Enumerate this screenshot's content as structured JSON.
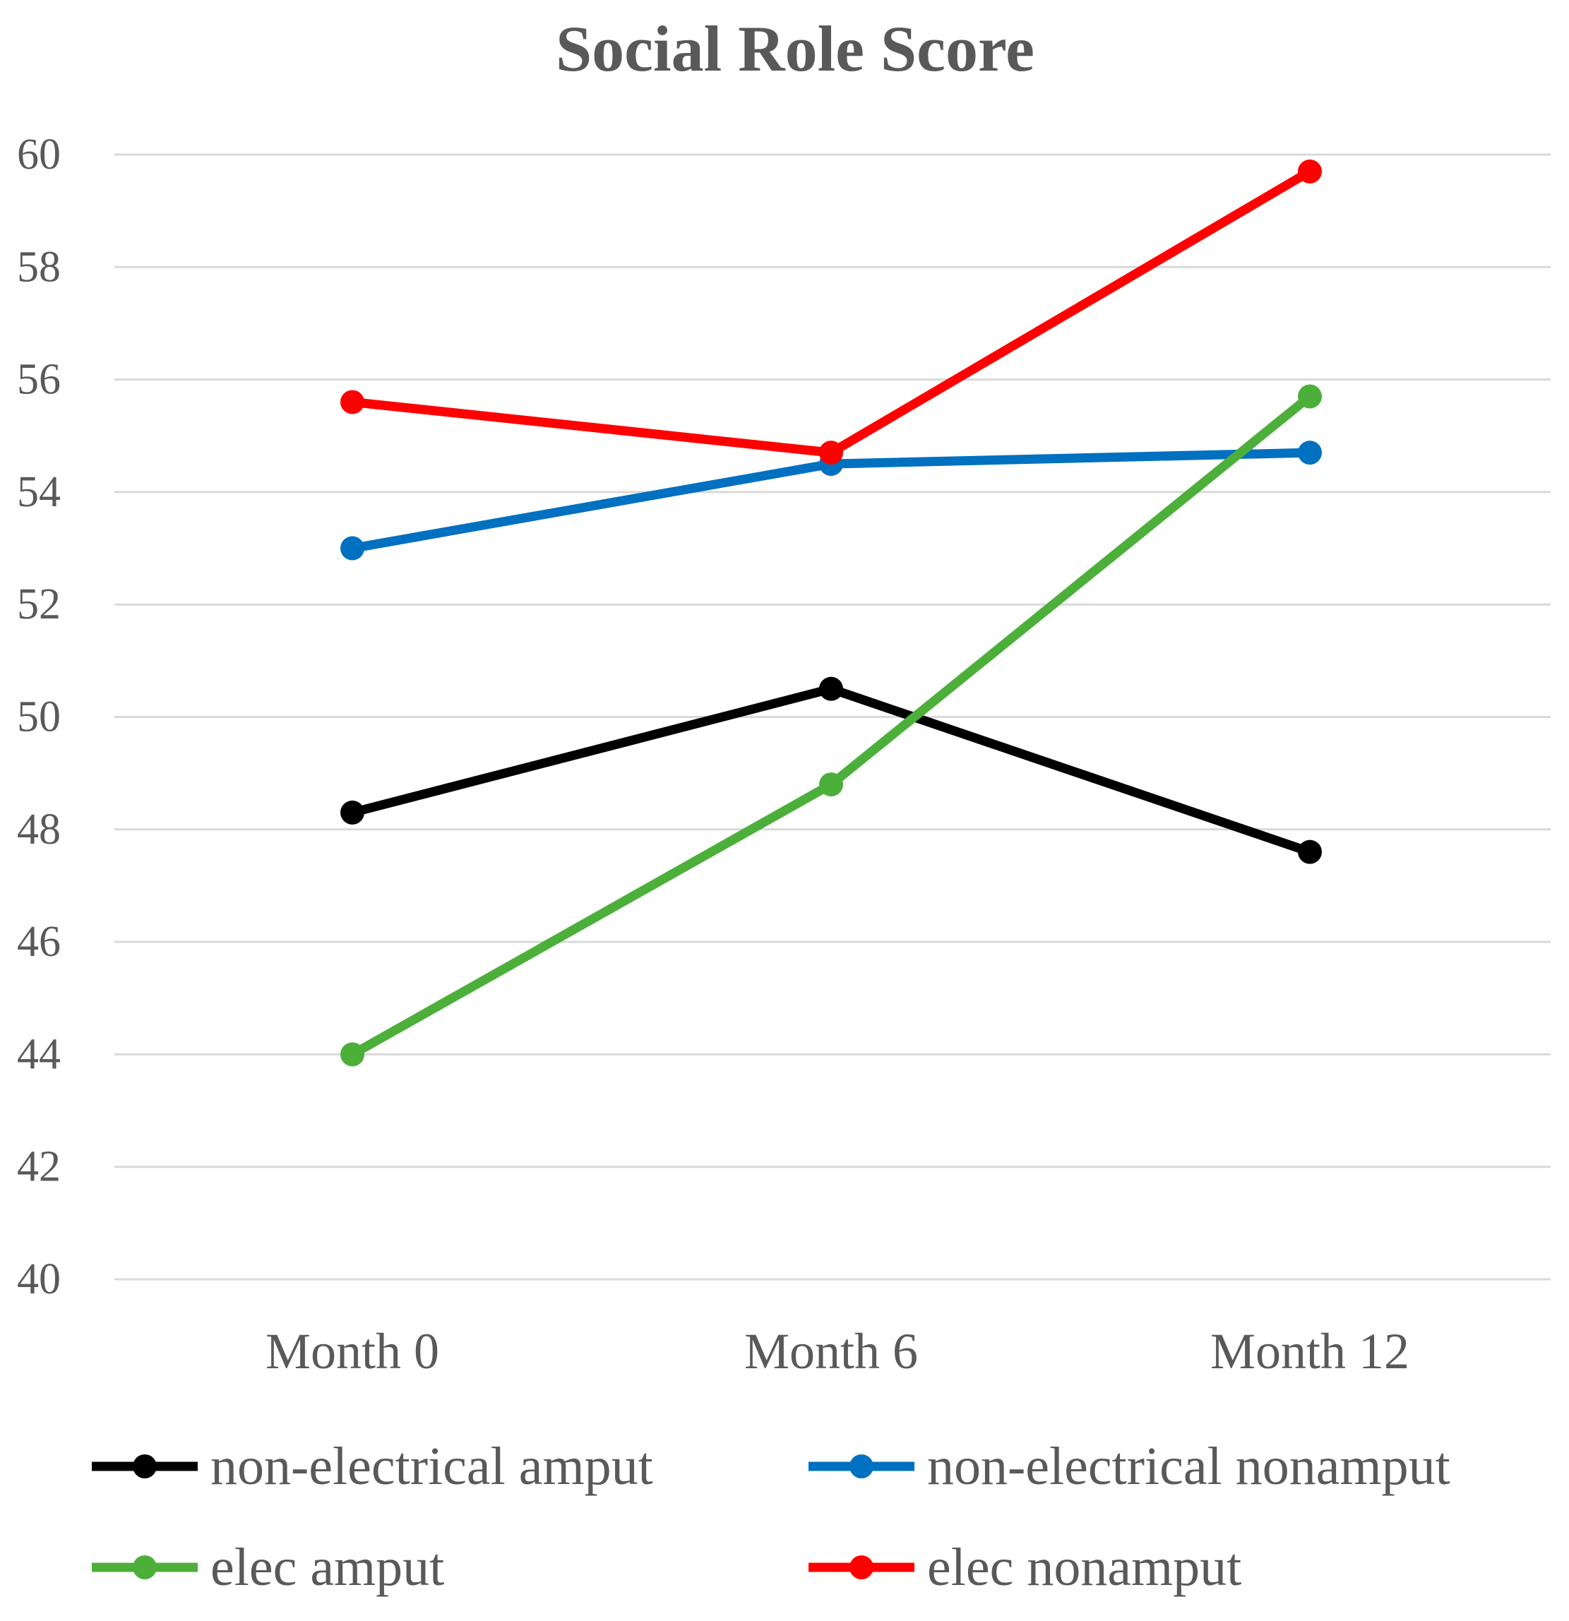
{
  "chart_data": {
    "type": "line",
    "title": "Social Role Score",
    "xlabel": "",
    "ylabel": "",
    "categories": [
      "Month 0",
      "Month 6",
      "Month 12"
    ],
    "ylim": [
      40,
      60
    ],
    "yticks": [
      40,
      42,
      44,
      46,
      48,
      50,
      52,
      54,
      56,
      58,
      60
    ],
    "grid": true,
    "legend_position": "bottom",
    "series": [
      {
        "name": "non-electrical amput",
        "color": "#000000",
        "values": [
          48.3,
          50.5,
          47.6
        ]
      },
      {
        "name": "non-electrical nonamput",
        "color": "#0070C0",
        "values": [
          53.0,
          54.5,
          54.7
        ]
      },
      {
        "name": "elec amput",
        "color": "#4CAF3A",
        "values": [
          44.0,
          48.8,
          55.7
        ]
      },
      {
        "name": "elec nonamput",
        "color": "#FF0000",
        "values": [
          55.6,
          54.7,
          59.7
        ]
      }
    ]
  }
}
